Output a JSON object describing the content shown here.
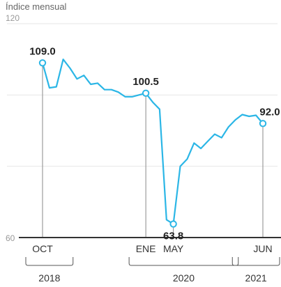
{
  "chart_data": {
    "type": "line",
    "title": "Índice mensual",
    "ylim": [
      60,
      120
    ],
    "yticks": [
      "120",
      "60"
    ],
    "grid": true,
    "series": [
      {
        "color": "#2bb6e6",
        "x": [
          "2018-10",
          "2018-11",
          "2018-12",
          "2019-01",
          "2019-02",
          "2019-03",
          "2019-04",
          "2019-05",
          "2019-06",
          "2019-07",
          "2019-08",
          "2019-09",
          "2019-10",
          "2019-11",
          "2019-12",
          "2020-01",
          "2020-02",
          "2020-03",
          "2020-04",
          "2020-05",
          "2020-06",
          "2020-07",
          "2020-08",
          "2020-09",
          "2020-10",
          "2020-11",
          "2020-12",
          "2021-01",
          "2021-02",
          "2021-03",
          "2021-04",
          "2021-05",
          "2021-06"
        ],
        "values": [
          109.0,
          102.0,
          102.3,
          110.0,
          107.5,
          104.5,
          105.5,
          103.0,
          103.3,
          101.5,
          101.5,
          100.8,
          99.5,
          99.5,
          100.0,
          100.5,
          98.0,
          96.0,
          65.0,
          63.8,
          80.0,
          82.0,
          86.5,
          85.0,
          87.0,
          89.0,
          88.0,
          91.0,
          93.0,
          94.5,
          94.0,
          94.3,
          92.0
        ]
      }
    ],
    "data_labels": [
      {
        "index": 0,
        "text": "109.0"
      },
      {
        "index": 15,
        "text": "100.5"
      },
      {
        "index": 19,
        "text": "63.8"
      },
      {
        "index": 32,
        "text": "92.0"
      }
    ],
    "x_labels": [
      {
        "index": 0,
        "text": "OCT"
      },
      {
        "index": 15,
        "text": "ENE"
      },
      {
        "index": 19,
        "text": "MAY"
      },
      {
        "index": 32,
        "text": "JUN"
      }
    ],
    "years": [
      {
        "from": 0,
        "to": 2,
        "text": "2018"
      },
      {
        "from": 15,
        "to": 26,
        "text": "2020"
      },
      {
        "from": 30,
        "to": 32,
        "text": "2021"
      }
    ]
  }
}
